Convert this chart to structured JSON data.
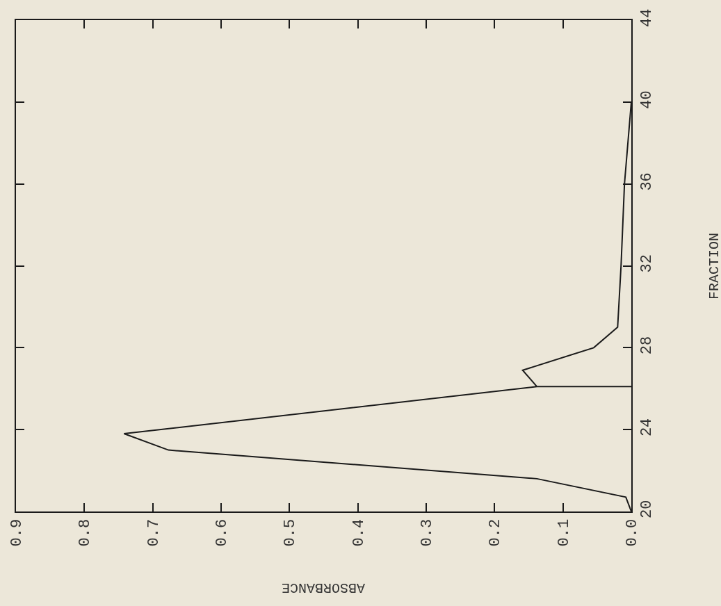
{
  "chart_data": {
    "type": "line",
    "xlabel": "ABSORBANCE",
    "ylabel": "FRACTION",
    "xlim": [
      0.9,
      0.0
    ],
    "xticks": [
      0.9,
      0.8,
      0.7,
      0.6,
      0.5,
      0.4,
      0.3,
      0.2,
      0.1,
      {
        "value": 0,
        "label": "0.0"
      }
    ],
    "ylim": [
      20,
      44
    ],
    "yticks": [
      20,
      24,
      28,
      32,
      36,
      40,
      44
    ],
    "grid": false,
    "marker": "none",
    "line_style": "solid",
    "series": [
      {
        "color": "#1a1a1a",
        "x": [
          0,
          0.008,
          0.138,
          0.677,
          0.742,
          0.138,
          0.159,
          0.055,
          0.02,
          0.015,
          0.01,
          0
        ],
        "values": [
          20,
          20.7,
          21.6,
          23.0,
          23.8,
          26.1,
          26.9,
          28,
          29,
          32,
          36,
          40
        ]
      },
      {
        "color": "#1a1a1a",
        "x": [
          0,
          0.138
        ],
        "values": [
          26.1,
          26.1
        ]
      }
    ]
  }
}
